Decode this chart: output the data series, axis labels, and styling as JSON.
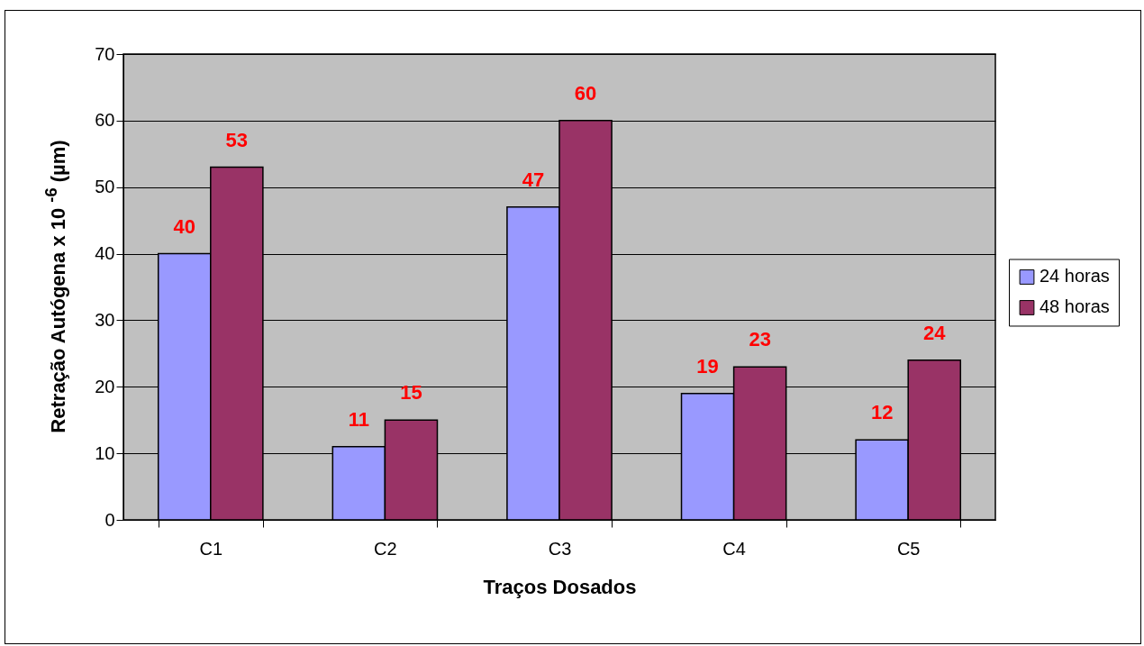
{
  "chart_data": {
    "type": "bar",
    "xlabel": "Traços Dosados",
    "ylabel": "Retração Autógena x 10 $^{-6}$ (µm)",
    "categories": [
      "C1",
      "C2",
      "C3",
      "C4",
      "C5"
    ],
    "series": [
      {
        "name": "24 horas",
        "color": "#9999ff",
        "values": [
          40,
          11,
          47,
          19,
          12
        ]
      },
      {
        "name": "48 horas",
        "color": "#993366",
        "values": [
          53,
          15,
          60,
          23,
          24
        ]
      }
    ],
    "ylim": [
      0,
      70
    ],
    "yticks": [
      0,
      10,
      20,
      30,
      40,
      50,
      60,
      70
    ],
    "grid": "y",
    "legend": "right",
    "data_labels": true
  }
}
